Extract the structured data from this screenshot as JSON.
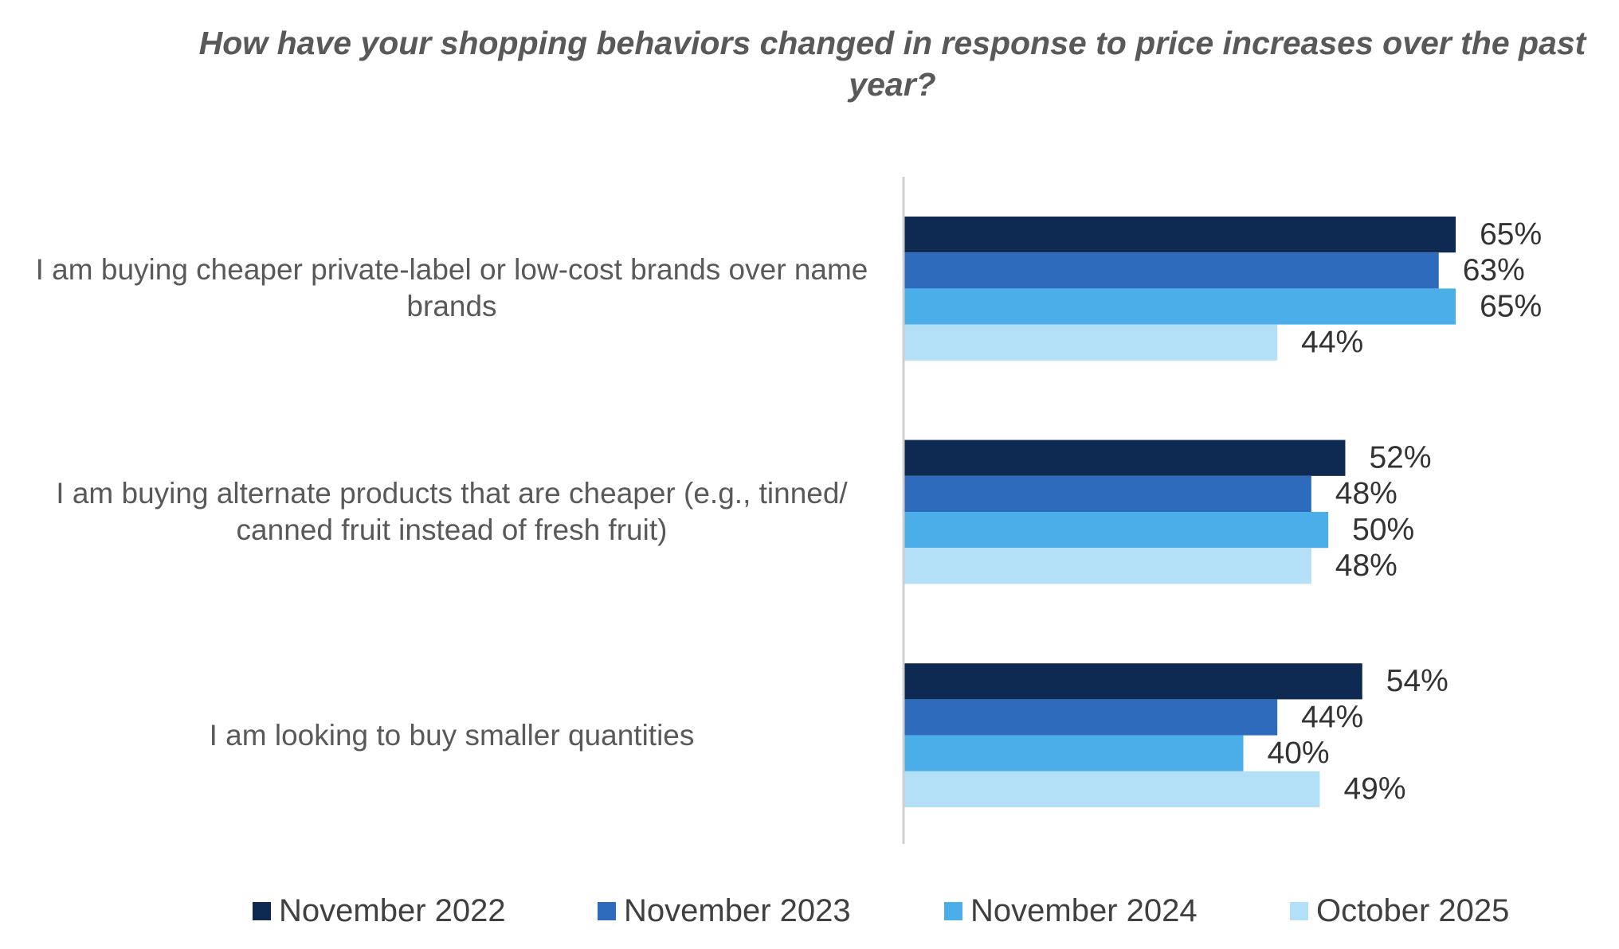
{
  "chart_data": {
    "type": "bar",
    "orientation": "horizontal",
    "title": "How have your shopping behaviors changed in response to price increases over the past year?",
    "categories": [
      "I am buying cheaper private-label or low-cost brands over name brands",
      "I am buying alternate products that are cheaper (e.g., tinned/ canned fruit instead of fresh fruit)",
      "I am looking to buy smaller quantities"
    ],
    "series": [
      {
        "name": "November 2022",
        "color": "#0f2a52",
        "values": [
          65,
          52,
          54
        ],
        "value_labels": [
          "65%",
          "52%",
          "54%"
        ]
      },
      {
        "name": "November 2023",
        "color": "#2e6bbd",
        "values": [
          63,
          48,
          44
        ],
        "value_labels": [
          "63%",
          "48%",
          "44%"
        ]
      },
      {
        "name": "November 2024",
        "color": "#4baee8",
        "values": [
          65,
          50,
          40
        ],
        "value_labels": [
          "65%",
          "50%",
          "40%"
        ]
      },
      {
        "name": "October 2025",
        "color": "#b3e0f7",
        "values": [
          44,
          48,
          49
        ],
        "value_labels": [
          "44%",
          "48%",
          "49%"
        ]
      }
    ],
    "xlim": [
      0,
      80
    ],
    "legend": "bottom"
  }
}
